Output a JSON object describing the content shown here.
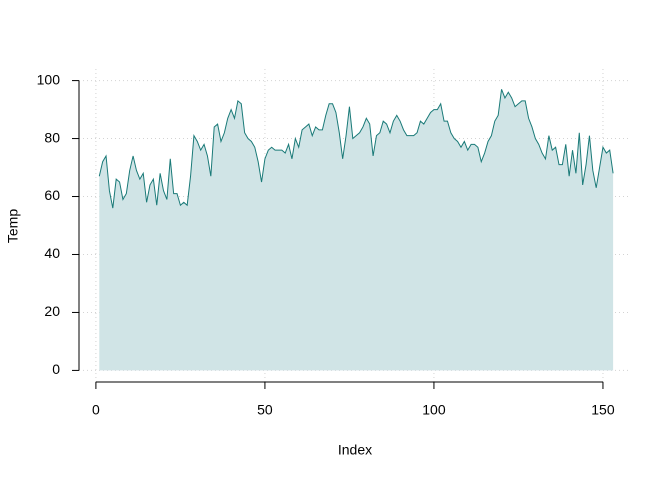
{
  "chart_data": {
    "type": "area",
    "x_label": "Index",
    "y_label": "Temp",
    "x": [
      1,
      2,
      3,
      4,
      5,
      6,
      7,
      8,
      9,
      10,
      11,
      12,
      13,
      14,
      15,
      16,
      17,
      18,
      19,
      20,
      21,
      22,
      23,
      24,
      25,
      26,
      27,
      28,
      29,
      30,
      31,
      32,
      33,
      34,
      35,
      36,
      37,
      38,
      39,
      40,
      41,
      42,
      43,
      44,
      45,
      46,
      47,
      48,
      49,
      50,
      51,
      52,
      53,
      54,
      55,
      56,
      57,
      58,
      59,
      60,
      61,
      62,
      63,
      64,
      65,
      66,
      67,
      68,
      69,
      70,
      71,
      72,
      73,
      74,
      75,
      76,
      77,
      78,
      79,
      80,
      81,
      82,
      83,
      84,
      85,
      86,
      87,
      88,
      89,
      90,
      91,
      92,
      93,
      94,
      95,
      96,
      97,
      98,
      99,
      100,
      101,
      102,
      103,
      104,
      105,
      106,
      107,
      108,
      109,
      110,
      111,
      112,
      113,
      114,
      115,
      116,
      117,
      118,
      119,
      120,
      121,
      122,
      123,
      124,
      125,
      126,
      127,
      128,
      129,
      130,
      131,
      132,
      133,
      134,
      135,
      136,
      137,
      138,
      139,
      140,
      141,
      142,
      143,
      144,
      145,
      146,
      147,
      148,
      149,
      150,
      151,
      152,
      153
    ],
    "values": [
      67,
      72,
      74,
      62,
      56,
      66,
      65,
      59,
      61,
      69,
      74,
      69,
      66,
      68,
      58,
      64,
      66,
      57,
      68,
      62,
      59,
      73,
      61,
      61,
      57,
      58,
      57,
      67,
      81,
      79,
      76,
      78,
      74,
      67,
      84,
      85,
      79,
      82,
      87,
      90,
      87,
      93,
      92,
      82,
      80,
      79,
      77,
      72,
      65,
      73,
      76,
      77,
      76,
      76,
      76,
      75,
      78,
      73,
      80,
      77,
      83,
      84,
      85,
      81,
      84,
      83,
      83,
      88,
      92,
      92,
      89,
      82,
      73,
      81,
      91,
      80,
      81,
      82,
      84,
      87,
      85,
      74,
      81,
      82,
      86,
      85,
      82,
      86,
      88,
      86,
      83,
      81,
      81,
      81,
      82,
      86,
      85,
      87,
      89,
      90,
      90,
      92,
      86,
      86,
      82,
      80,
      79,
      77,
      79,
      76,
      78,
      78,
      77,
      72,
      75,
      79,
      81,
      86,
      88,
      97,
      94,
      96,
      94,
      91,
      92,
      93,
      93,
      87,
      84,
      80,
      78,
      75,
      73,
      81,
      76,
      77,
      71,
      71,
      78,
      67,
      76,
      68,
      82,
      64,
      71,
      81,
      69,
      63,
      70,
      77,
      75,
      76,
      68
    ],
    "color": "#1a7a78",
    "fill": "#d0e4e6",
    "xlim": [
      -5,
      158
    ],
    "xticks": [
      0,
      50,
      100,
      150
    ],
    "ylim": [
      -4,
      104
    ],
    "yticks": [
      0,
      20,
      40,
      60,
      80,
      100
    ],
    "grid": true
  }
}
